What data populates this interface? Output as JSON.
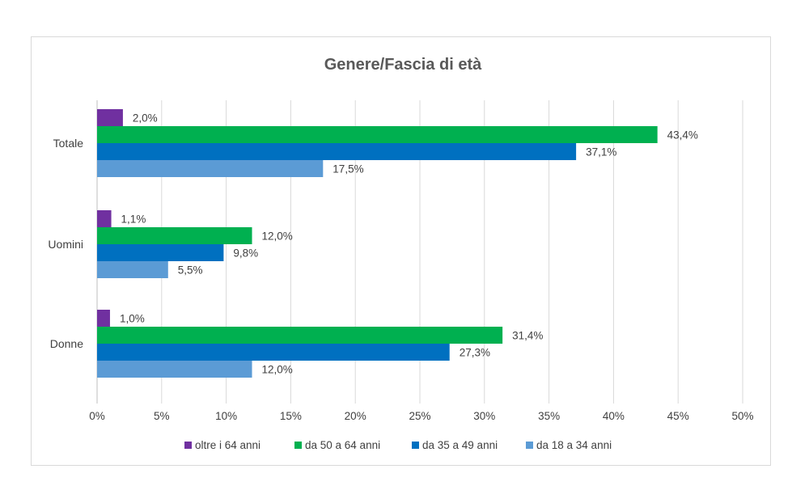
{
  "chart_data": {
    "type": "bar",
    "orientation": "horizontal",
    "title": "Genere/Fascia di età",
    "categories": [
      "Totale",
      "Uomini",
      "Donne"
    ],
    "series": [
      {
        "name": "oltre i 64 anni",
        "color": "#7030A0",
        "values": [
          2.0,
          1.1,
          1.0
        ],
        "labels": [
          "2,0%",
          "1,1%",
          "1,0%"
        ]
      },
      {
        "name": "da 50 a 64 anni",
        "color": "#00B050",
        "values": [
          43.4,
          12.0,
          31.4
        ],
        "labels": [
          "43,4%",
          "12,0%",
          "31,4%"
        ]
      },
      {
        "name": "da 35 a 49 anni",
        "color": "#0070C0",
        "values": [
          37.1,
          9.8,
          27.3
        ],
        "labels": [
          "37,1%",
          "9,8%",
          "27,3%"
        ]
      },
      {
        "name": "da 18 a 34 anni",
        "color": "#5B9BD5",
        "values": [
          17.5,
          5.5,
          12.0
        ],
        "labels": [
          "17,5%",
          "5,5%",
          "12,0%"
        ]
      }
    ],
    "xlim": [
      0,
      50
    ],
    "xticks": [
      0,
      5,
      10,
      15,
      20,
      25,
      30,
      35,
      40,
      45,
      50
    ],
    "xtick_labels": [
      "0%",
      "5%",
      "10%",
      "15%",
      "20%",
      "25%",
      "30%",
      "35%",
      "40%",
      "45%",
      "50%"
    ],
    "grid": true,
    "legend_position": "bottom"
  }
}
